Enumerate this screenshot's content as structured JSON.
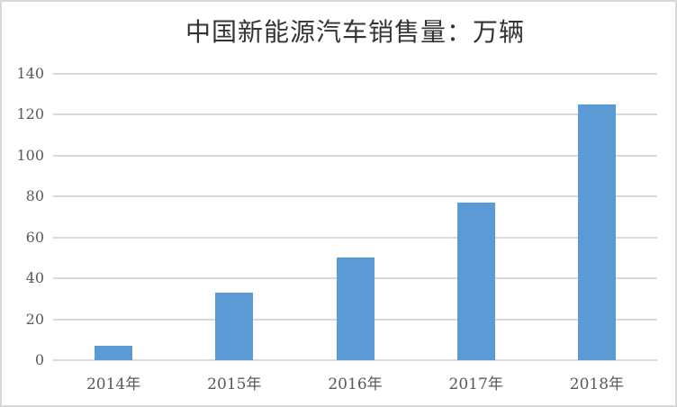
{
  "page": {
    "background_color": "#ffffff",
    "frame_border_color": "#d9d9d9"
  },
  "chart_data": {
    "type": "bar",
    "title": "中国新能源汽车销售量：万辆",
    "categories": [
      "2014年",
      "2015年",
      "2016年",
      "2017年",
      "2018年"
    ],
    "values": [
      7,
      33,
      50,
      77,
      125
    ],
    "xlabel": "",
    "ylabel": "",
    "ylim": [
      0,
      140
    ],
    "ytick_step": 20,
    "ytick_labels": [
      "0",
      "20",
      "40",
      "60",
      "80",
      "100",
      "120",
      "140"
    ],
    "grid": true,
    "legend_position": "none",
    "bar_color": "#5b9bd5",
    "gridline_color": "#d9d9d9",
    "tick_label_color": "#595959",
    "title_color": "#333333"
  }
}
